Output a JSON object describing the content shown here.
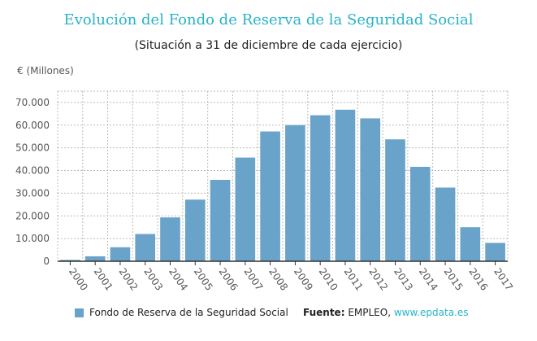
{
  "chart_data": {
    "type": "bar",
    "title": "Evolución del Fondo de Reserva de la Seguridad Social",
    "subtitle": "(Situación a 31 de diciembre de cada ejercicio)",
    "ylabel": "€ (Millones)",
    "xlabel": "",
    "ylim": [
      0,
      75000
    ],
    "yticks": [
      "0",
      "10.000",
      "20.000",
      "30.000",
      "40.000",
      "50.000",
      "60.000",
      "70.000"
    ],
    "ytick_values": [
      0,
      10000,
      20000,
      30000,
      40000,
      50000,
      60000,
      70000
    ],
    "categories": [
      "2000",
      "2001",
      "2002",
      "2003",
      "2004",
      "2005",
      "2006",
      "2007",
      "2008",
      "2009",
      "2010",
      "2011",
      "2012",
      "2013",
      "2014",
      "2015",
      "2016",
      "2017"
    ],
    "series": [
      {
        "name": "Fondo de Reserva de la Seguridad Social",
        "values": [
          601,
          2179,
          6168,
          12024,
          19330,
          27177,
          35879,
          45716,
          57223,
          60022,
          64375,
          66815,
          63008,
          53744,
          41634,
          32481,
          15000,
          8095
        ],
        "color": "#6aa3c9"
      }
    ],
    "grid": true,
    "legend": "bottom-left"
  },
  "source": {
    "label": "Fuente:",
    "text": "EMPLEO,",
    "link": "www.epdata.es"
  }
}
